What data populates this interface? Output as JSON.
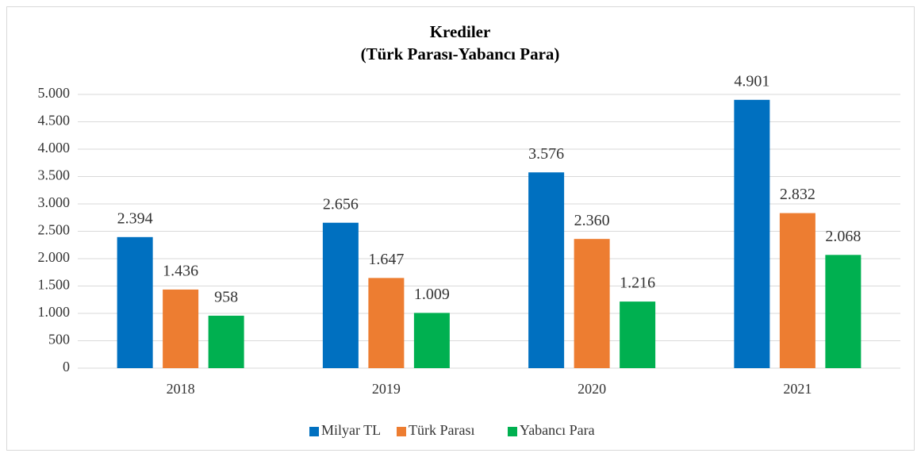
{
  "chart_data": {
    "type": "bar",
    "title": "Krediler",
    "subtitle": "(Türk Parası-Yabancı Para)",
    "categories": [
      "2018",
      "2019",
      "2020",
      "2021"
    ],
    "series": [
      {
        "name": "Milyar TL",
        "color": "#0070c0",
        "values": [
          2394,
          2656,
          3576,
          4901
        ],
        "value_labels": [
          "2.394",
          "2.656",
          "3.576",
          "4.901"
        ]
      },
      {
        "name": "Türk Parası",
        "color": "#ed7d31",
        "values": [
          1436,
          1647,
          2360,
          2832
        ],
        "value_labels": [
          "1.436",
          "1.647",
          "2.360",
          "2.832"
        ]
      },
      {
        "name": "Yabancı Para",
        "color": "#00b050",
        "values": [
          958,
          1009,
          1216,
          2068
        ],
        "value_labels": [
          "958",
          "1.009",
          "1.216",
          "2.068"
        ]
      }
    ],
    "ylim": [
      0,
      5000
    ],
    "yticks": [
      0,
      500,
      {
        "value": 1000,
        "label": "1.000"
      },
      {
        "value": 1500,
        "label": "1.500"
      },
      {
        "value": 2000,
        "label": "2.000"
      },
      {
        "value": 2500,
        "label": "2.500"
      },
      {
        "value": 3000,
        "label": "3.000"
      },
      {
        "value": 3500,
        "label": "3.500"
      },
      {
        "value": 4000,
        "label": "4.000"
      },
      {
        "value": 4500,
        "label": "4.500"
      },
      {
        "value": 5000,
        "label": "5.000"
      }
    ],
    "grid": true,
    "legend": "bottom"
  }
}
